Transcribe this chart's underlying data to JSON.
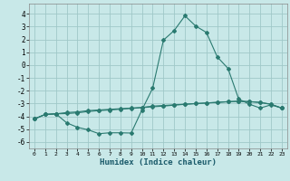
{
  "xlabel": "Humidex (Indice chaleur)",
  "xlim": [
    -0.5,
    23.5
  ],
  "ylim": [
    -6.5,
    4.8
  ],
  "yticks": [
    -6,
    -5,
    -4,
    -3,
    -2,
    -1,
    0,
    1,
    2,
    3,
    4
  ],
  "xticks": [
    0,
    1,
    2,
    3,
    4,
    5,
    6,
    7,
    8,
    9,
    10,
    11,
    12,
    13,
    14,
    15,
    16,
    17,
    18,
    19,
    20,
    21,
    22,
    23
  ],
  "bg_color": "#c8e8e8",
  "line_color": "#2a7a70",
  "grid_color": "#a0c8c8",
  "curve1_x": [
    0,
    1,
    2,
    3,
    4,
    5,
    6,
    7,
    8,
    9,
    10,
    11,
    12,
    13,
    14,
    15,
    16,
    17,
    18,
    19,
    20,
    21,
    22,
    23
  ],
  "curve1_y": [
    -4.2,
    -3.85,
    -3.8,
    -3.7,
    -3.65,
    -3.55,
    -3.5,
    -3.45,
    -3.4,
    -3.35,
    -3.3,
    -3.2,
    -3.15,
    -3.1,
    -3.05,
    -3.0,
    -2.95,
    -2.9,
    -2.85,
    -2.82,
    -2.85,
    -2.9,
    -3.05,
    -3.35
  ],
  "curve2_x": [
    0,
    1,
    2,
    3,
    4,
    5,
    6,
    7,
    8,
    9,
    10,
    11,
    12,
    13,
    14,
    15,
    16,
    17,
    18,
    19,
    20,
    21,
    22,
    23
  ],
  "curve2_y": [
    -4.2,
    -3.85,
    -3.8,
    -4.5,
    -4.85,
    -5.05,
    -5.35,
    -5.28,
    -5.28,
    -5.3,
    -3.5,
    -1.8,
    1.95,
    2.7,
    3.85,
    3.05,
    2.55,
    0.65,
    -0.25,
    -2.65,
    -3.05,
    -3.35,
    -3.1,
    -3.35
  ],
  "curve3_x": [
    0,
    1,
    2,
    3,
    4,
    5,
    6,
    7,
    8,
    9,
    10,
    11,
    12,
    13,
    14,
    15,
    16,
    17,
    18,
    19,
    20,
    21,
    22,
    23
  ],
  "curve3_y": [
    -4.2,
    -3.85,
    -3.8,
    -3.78,
    -3.72,
    -3.62,
    -3.55,
    -3.5,
    -3.44,
    -3.38,
    -3.32,
    -3.25,
    -3.2,
    -3.12,
    -3.06,
    -3.0,
    -2.96,
    -2.91,
    -2.86,
    -2.82,
    -2.85,
    -2.92,
    -3.06,
    -3.35
  ]
}
